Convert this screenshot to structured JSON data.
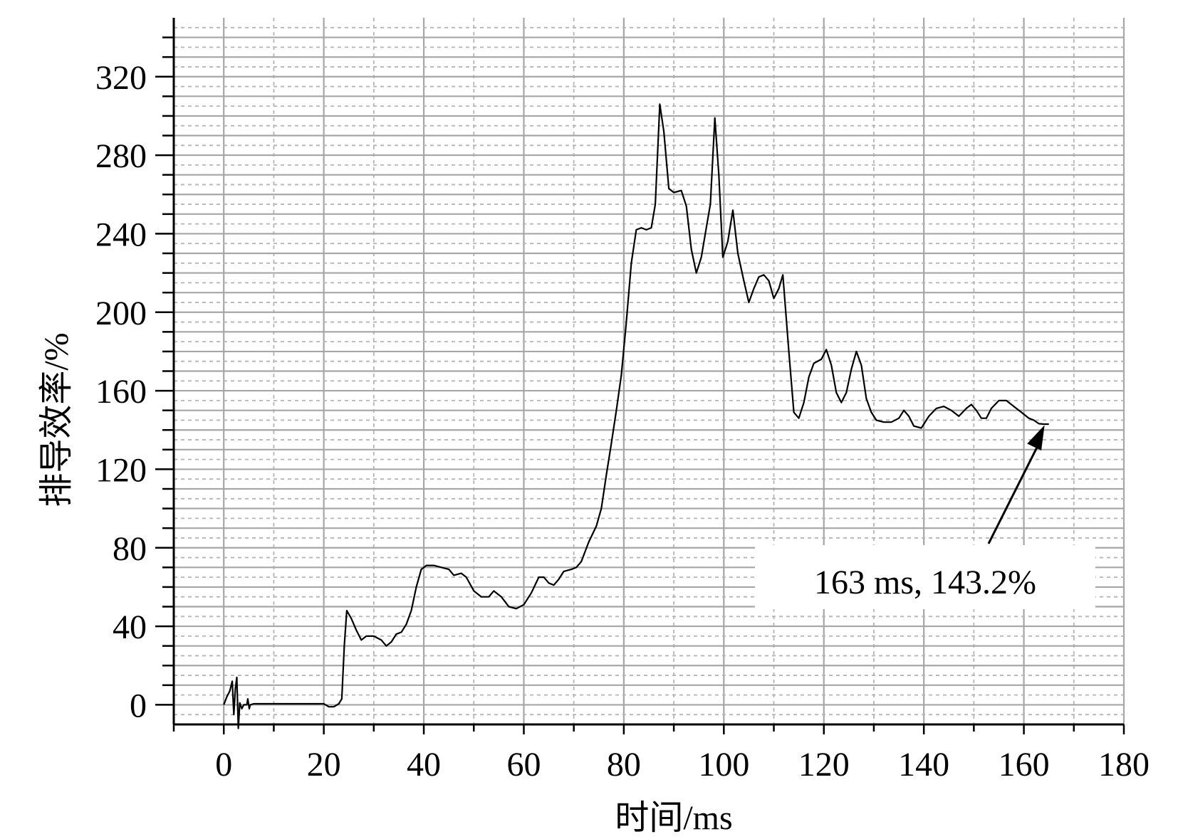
{
  "chart_data": {
    "type": "line",
    "title": "",
    "xlabel": "时间/ms",
    "ylabel": "排导效率/%",
    "xlim": [
      -10,
      180
    ],
    "ylim": [
      -10,
      350
    ],
    "x_ticks": [
      0,
      20,
      40,
      60,
      80,
      100,
      120,
      140,
      160,
      180
    ],
    "y_ticks": [
      0,
      40,
      80,
      120,
      160,
      200,
      240,
      280,
      320
    ],
    "grid": true,
    "series": [
      {
        "line_color": "#000000",
        "points": [
          [
            0,
            0
          ],
          [
            0.6,
            4
          ],
          [
            1.2,
            7
          ],
          [
            1.7,
            12
          ],
          [
            2.0,
            -5
          ],
          [
            2.3,
            8
          ],
          [
            2.6,
            14
          ],
          [
            2.9,
            -12
          ],
          [
            3.2,
            1
          ],
          [
            3.6,
            -2
          ],
          [
            4.0,
            0
          ],
          [
            4.6,
            0
          ],
          [
            4.8,
            3
          ],
          [
            5.1,
            -2
          ],
          [
            5.3,
            0
          ],
          [
            6,
            0.5
          ],
          [
            8,
            0.5
          ],
          [
            10,
            0.5
          ],
          [
            12,
            0.5
          ],
          [
            14,
            0.5
          ],
          [
            16,
            0.5
          ],
          [
            18,
            0.5
          ],
          [
            20,
            0.5
          ],
          [
            21,
            -1
          ],
          [
            22,
            -1
          ],
          [
            23,
            0.5
          ],
          [
            23.6,
            3
          ],
          [
            24.1,
            30
          ],
          [
            24.6,
            48
          ],
          [
            25.5,
            44
          ],
          [
            26.5,
            38
          ],
          [
            27.5,
            33
          ],
          [
            28.5,
            35
          ],
          [
            30,
            35
          ],
          [
            31.5,
            33
          ],
          [
            32.5,
            30
          ],
          [
            33.5,
            32
          ],
          [
            34.5,
            36
          ],
          [
            35.5,
            37
          ],
          [
            36.5,
            41
          ],
          [
            37.5,
            48
          ],
          [
            38.5,
            60
          ],
          [
            39.5,
            69
          ],
          [
            40.5,
            71
          ],
          [
            42,
            71
          ],
          [
            43.5,
            70
          ],
          [
            45,
            69
          ],
          [
            46,
            66
          ],
          [
            47.5,
            67
          ],
          [
            48.5,
            65
          ],
          [
            50,
            58
          ],
          [
            51.5,
            55
          ],
          [
            53,
            55
          ],
          [
            54,
            58
          ],
          [
            55.5,
            55
          ],
          [
            57,
            50
          ],
          [
            58.5,
            49
          ],
          [
            60,
            51
          ],
          [
            61.5,
            57
          ],
          [
            63,
            65
          ],
          [
            64,
            65
          ],
          [
            65,
            62
          ],
          [
            66,
            61
          ],
          [
            67,
            64
          ],
          [
            68,
            68
          ],
          [
            69.5,
            69
          ],
          [
            70.5,
            70
          ],
          [
            71.5,
            73
          ],
          [
            73,
            83
          ],
          [
            74.5,
            91
          ],
          [
            75.5,
            100
          ],
          [
            76.5,
            117
          ],
          [
            77.5,
            133
          ],
          [
            78.5,
            150
          ],
          [
            79.5,
            168
          ],
          [
            80.5,
            195
          ],
          [
            81.5,
            225
          ],
          [
            82.5,
            242
          ],
          [
            83.5,
            243
          ],
          [
            84.5,
            242
          ],
          [
            85.5,
            243
          ],
          [
            86.3,
            255
          ],
          [
            87.2,
            306
          ],
          [
            88,
            292
          ],
          [
            89,
            263
          ],
          [
            90,
            261
          ],
          [
            91.5,
            262
          ],
          [
            92.5,
            254
          ],
          [
            93.5,
            232
          ],
          [
            94.5,
            220
          ],
          [
            95.5,
            228
          ],
          [
            96.5,
            243
          ],
          [
            97.3,
            255
          ],
          [
            98.2,
            299
          ],
          [
            99,
            270
          ],
          [
            99.8,
            228
          ],
          [
            100.8,
            236
          ],
          [
            101.8,
            252
          ],
          [
            102.8,
            230
          ],
          [
            104,
            216
          ],
          [
            105,
            205
          ],
          [
            106,
            212
          ],
          [
            107,
            218
          ],
          [
            108,
            219
          ],
          [
            109,
            216
          ],
          [
            110,
            207
          ],
          [
            111,
            212
          ],
          [
            111.8,
            219
          ],
          [
            113,
            180
          ],
          [
            114,
            149
          ],
          [
            115,
            146
          ],
          [
            116,
            154
          ],
          [
            117,
            167
          ],
          [
            118,
            174
          ],
          [
            119.5,
            176
          ],
          [
            120.5,
            181
          ],
          [
            121.5,
            173
          ],
          [
            122.5,
            159
          ],
          [
            123.5,
            154
          ],
          [
            124.5,
            159
          ],
          [
            125.5,
            171
          ],
          [
            126.5,
            180
          ],
          [
            127.5,
            173
          ],
          [
            128.5,
            156
          ],
          [
            129.5,
            149
          ],
          [
            130.5,
            145
          ],
          [
            132,
            144
          ],
          [
            133.5,
            144
          ],
          [
            135,
            146
          ],
          [
            136,
            150
          ],
          [
            137,
            147
          ],
          [
            138,
            142
          ],
          [
            139.5,
            141
          ],
          [
            141,
            147
          ],
          [
            142.5,
            151
          ],
          [
            144,
            152
          ],
          [
            145.5,
            150
          ],
          [
            147,
            147
          ],
          [
            148.5,
            151
          ],
          [
            149.5,
            153
          ],
          [
            150.5,
            150
          ],
          [
            151.5,
            146
          ],
          [
            152.5,
            146
          ],
          [
            153.5,
            151
          ],
          [
            155,
            155
          ],
          [
            156.5,
            155
          ],
          [
            158,
            152
          ],
          [
            159.5,
            149
          ],
          [
            161,
            146
          ],
          [
            162,
            145
          ],
          [
            163,
            143.2
          ],
          [
            164,
            143
          ],
          [
            165,
            143
          ]
        ]
      }
    ],
    "annotation": {
      "text": "163 ms, 143.2%",
      "x": 163,
      "y": 143.2
    }
  }
}
